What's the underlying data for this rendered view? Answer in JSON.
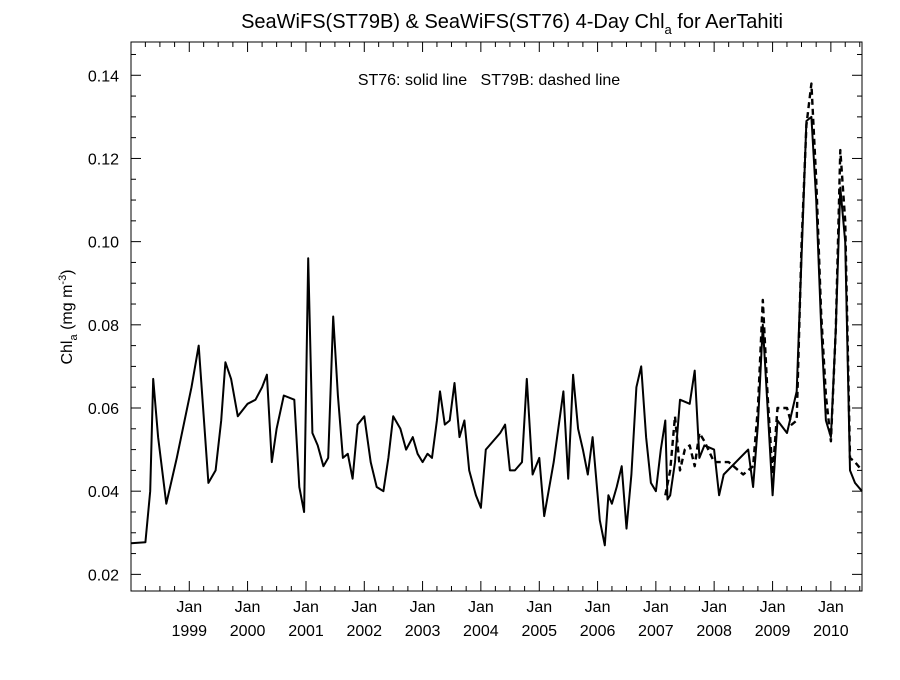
{
  "chart_data": {
    "type": "line",
    "title": {
      "before": "SeaWiFS(ST79B) & SeaWiFS(ST76) 4-Day Chl",
      "sub": "a",
      "after": " for AerTahiti"
    },
    "ylabel": {
      "base": "Chl",
      "sub": "a",
      "mid": " (mg m",
      "sup": "-3",
      "end": ")"
    },
    "annotation": "ST76: solid line   ST79B: dashed line",
    "x_axis": {
      "range": [
        "1998-01-01",
        "2010-07-15"
      ],
      "ticks": [
        {
          "date": "1999-01-01",
          "month": "Jan",
          "year": "1999"
        },
        {
          "date": "2000-01-01",
          "month": "Jan",
          "year": "2000"
        },
        {
          "date": "2001-01-01",
          "month": "Jan",
          "year": "2001"
        },
        {
          "date": "2002-01-01",
          "month": "Jan",
          "year": "2002"
        },
        {
          "date": "2003-01-01",
          "month": "Jan",
          "year": "2003"
        },
        {
          "date": "2004-01-01",
          "month": "Jan",
          "year": "2004"
        },
        {
          "date": "2005-01-01",
          "month": "Jan",
          "year": "2005"
        },
        {
          "date": "2006-01-01",
          "month": "Jan",
          "year": "2006"
        },
        {
          "date": "2007-01-01",
          "month": "Jan",
          "year": "2007"
        },
        {
          "date": "2008-01-01",
          "month": "Jan",
          "year": "2008"
        },
        {
          "date": "2009-01-01",
          "month": "Jan",
          "year": "2009"
        },
        {
          "date": "2010-01-01",
          "month": "Jan",
          "year": "2010"
        }
      ]
    },
    "y_axis": {
      "range": [
        0.016,
        0.148
      ],
      "ticks": [
        0.02,
        0.04,
        0.06,
        0.08,
        0.1,
        0.12,
        0.14
      ],
      "tick_labels": [
        "0.02",
        "0.04",
        "0.06",
        "0.08",
        "0.10",
        "0.12",
        "0.14"
      ]
    },
    "grid": false,
    "series": [
      {
        "name": "ST76",
        "style": "solid",
        "color": "#000000",
        "points": [
          [
            "1998-01-01",
            0.0275
          ],
          [
            "1998-04-01",
            0.0277
          ],
          [
            "1998-05-01",
            0.04
          ],
          [
            "1998-05-20",
            0.067
          ],
          [
            "1998-06-20",
            0.053
          ],
          [
            "1998-08-10",
            0.037
          ],
          [
            "1998-10-15",
            0.048
          ],
          [
            "1999-01-15",
            0.065
          ],
          [
            "1999-03-01",
            0.075
          ],
          [
            "1999-05-01",
            0.042
          ],
          [
            "1999-06-15",
            0.045
          ],
          [
            "1999-07-20",
            0.057
          ],
          [
            "1999-08-15",
            0.071
          ],
          [
            "1999-09-20",
            0.067
          ],
          [
            "1999-11-01",
            0.058
          ],
          [
            "2000-01-01",
            0.061
          ],
          [
            "2000-02-20",
            0.062
          ],
          [
            "2000-04-01",
            0.065
          ],
          [
            "2000-05-01",
            0.068
          ],
          [
            "2000-06-01",
            0.047
          ],
          [
            "2000-07-01",
            0.055
          ],
          [
            "2000-08-15",
            0.063
          ],
          [
            "2000-10-20",
            0.062
          ],
          [
            "2000-11-20",
            0.041
          ],
          [
            "2000-12-20",
            0.035
          ],
          [
            "2001-01-15",
            0.096
          ],
          [
            "2001-02-10",
            0.054
          ],
          [
            "2001-03-15",
            0.051
          ],
          [
            "2001-04-20",
            0.046
          ],
          [
            "2001-05-20",
            0.048
          ],
          [
            "2001-06-20",
            0.082
          ],
          [
            "2001-07-20",
            0.063
          ],
          [
            "2001-08-20",
            0.048
          ],
          [
            "2001-09-20",
            0.049
          ],
          [
            "2001-10-20",
            0.043
          ],
          [
            "2001-11-20",
            0.056
          ],
          [
            "2002-01-01",
            0.058
          ],
          [
            "2002-02-10",
            0.047
          ],
          [
            "2002-03-20",
            0.041
          ],
          [
            "2002-05-01",
            0.04
          ],
          [
            "2002-06-01",
            0.048
          ],
          [
            "2002-07-01",
            0.058
          ],
          [
            "2002-08-15",
            0.055
          ],
          [
            "2002-09-20",
            0.05
          ],
          [
            "2002-11-01",
            0.053
          ],
          [
            "2002-12-01",
            0.049
          ],
          [
            "2003-01-01",
            0.047
          ],
          [
            "2003-02-01",
            0.049
          ],
          [
            "2003-03-01",
            0.048
          ],
          [
            "2003-04-01",
            0.057
          ],
          [
            "2003-04-20",
            0.064
          ],
          [
            "2003-05-20",
            0.056
          ],
          [
            "2003-06-20",
            0.057
          ],
          [
            "2003-07-20",
            0.066
          ],
          [
            "2003-08-20",
            0.053
          ],
          [
            "2003-09-20",
            0.057
          ],
          [
            "2003-10-20",
            0.045
          ],
          [
            "2003-12-01",
            0.039
          ],
          [
            "2004-01-01",
            0.036
          ],
          [
            "2004-02-01",
            0.05
          ],
          [
            "2004-05-01",
            0.054
          ],
          [
            "2004-06-01",
            0.056
          ],
          [
            "2004-07-01",
            0.045
          ],
          [
            "2004-08-01",
            0.045
          ],
          [
            "2004-09-15",
            0.047
          ],
          [
            "2004-10-15",
            0.067
          ],
          [
            "2004-11-20",
            0.044
          ],
          [
            "2005-01-01",
            0.048
          ],
          [
            "2005-02-01",
            0.034
          ],
          [
            "2005-04-01",
            0.047
          ],
          [
            "2005-06-01",
            0.064
          ],
          [
            "2005-07-01",
            0.043
          ],
          [
            "2005-08-01",
            0.068
          ],
          [
            "2005-09-01",
            0.055
          ],
          [
            "2005-10-01",
            0.05
          ],
          [
            "2005-11-01",
            0.044
          ],
          [
            "2005-12-01",
            0.053
          ],
          [
            "2006-01-15",
            0.033
          ],
          [
            "2006-02-15",
            0.027
          ],
          [
            "2006-03-10",
            0.039
          ],
          [
            "2006-04-01",
            0.037
          ],
          [
            "2006-05-01",
            0.041
          ],
          [
            "2006-06-01",
            0.046
          ],
          [
            "2006-07-01",
            0.031
          ],
          [
            "2006-08-01",
            0.044
          ],
          [
            "2006-09-01",
            0.065
          ],
          [
            "2006-10-01",
            0.07
          ],
          [
            "2006-11-01",
            0.053
          ],
          [
            "2006-12-01",
            0.042
          ],
          [
            "2007-01-01",
            0.04
          ],
          [
            "2007-02-01",
            0.05
          ],
          [
            "2007-03-01",
            0.057
          ],
          [
            "2007-03-15",
            0.038
          ],
          [
            "2007-04-01",
            0.039
          ],
          [
            "2007-05-01",
            0.047
          ],
          [
            "2007-06-01",
            0.062
          ],
          [
            "2007-08-01",
            0.061
          ],
          [
            "2007-09-01",
            0.069
          ],
          [
            "2007-10-01",
            0.048
          ],
          [
            "2007-11-01",
            0.051
          ],
          [
            "2008-01-01",
            0.05
          ],
          [
            "2008-02-01",
            0.039
          ],
          [
            "2008-03-01",
            0.044
          ],
          [
            "2008-08-01",
            0.05
          ],
          [
            "2008-09-01",
            0.041
          ],
          [
            "2008-10-01",
            0.056
          ],
          [
            "2008-11-01",
            0.08
          ],
          [
            "2008-12-01",
            0.06
          ],
          [
            "2009-01-01",
            0.039
          ],
          [
            "2009-02-01",
            0.057
          ],
          [
            "2009-04-01",
            0.054
          ],
          [
            "2009-06-01",
            0.064
          ],
          [
            "2009-07-01",
            0.096
          ],
          [
            "2009-08-01",
            0.129
          ],
          [
            "2009-09-01",
            0.13
          ],
          [
            "2009-10-01",
            0.11
          ],
          [
            "2009-11-01",
            0.08
          ],
          [
            "2009-12-01",
            0.057
          ],
          [
            "2010-01-01",
            0.053
          ],
          [
            "2010-02-01",
            0.079
          ],
          [
            "2010-03-01",
            0.113
          ],
          [
            "2010-04-01",
            0.1
          ],
          [
            "2010-05-01",
            0.045
          ],
          [
            "2010-06-01",
            0.042
          ],
          [
            "2010-07-15",
            0.04
          ]
        ]
      },
      {
        "name": "ST79B",
        "style": "dashed",
        "color": "#000000",
        "points": [
          [
            "2007-03-01",
            0.039
          ],
          [
            "2007-04-01",
            0.045
          ],
          [
            "2007-05-01",
            0.058
          ],
          [
            "2007-06-01",
            0.045
          ],
          [
            "2007-07-01",
            0.05
          ],
          [
            "2007-08-01",
            0.051
          ],
          [
            "2007-09-01",
            0.046
          ],
          [
            "2007-10-01",
            0.054
          ],
          [
            "2007-11-01",
            0.052
          ],
          [
            "2008-01-01",
            0.047
          ],
          [
            "2008-04-01",
            0.047
          ],
          [
            "2008-07-01",
            0.044
          ],
          [
            "2008-09-01",
            0.046
          ],
          [
            "2008-10-01",
            0.06
          ],
          [
            "2008-11-01",
            0.086
          ],
          [
            "2008-12-01",
            0.063
          ],
          [
            "2009-01-01",
            0.044
          ],
          [
            "2009-02-01",
            0.06
          ],
          [
            "2009-04-01",
            0.06
          ],
          [
            "2009-05-01",
            0.056
          ],
          [
            "2009-06-01",
            0.057
          ],
          [
            "2009-07-01",
            0.099
          ],
          [
            "2009-08-01",
            0.128
          ],
          [
            "2009-09-01",
            0.138
          ],
          [
            "2009-10-01",
            0.115
          ],
          [
            "2009-11-01",
            0.083
          ],
          [
            "2009-12-01",
            0.063
          ],
          [
            "2010-01-01",
            0.052
          ],
          [
            "2010-02-01",
            0.079
          ],
          [
            "2010-03-01",
            0.122
          ],
          [
            "2010-04-01",
            0.105
          ],
          [
            "2010-05-01",
            0.048
          ],
          [
            "2010-06-01",
            0.047
          ],
          [
            "2010-07-15",
            0.045
          ]
        ]
      }
    ]
  }
}
